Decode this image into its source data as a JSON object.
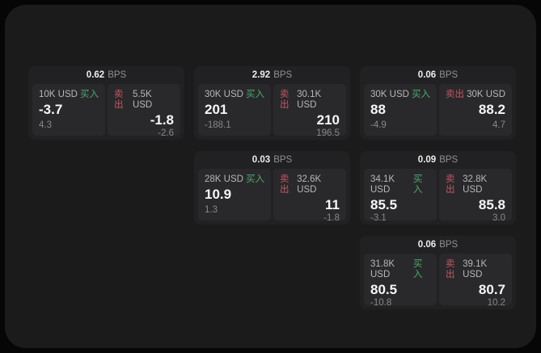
{
  "labels": {
    "bps_unit": "BPS",
    "buy_label": "买入",
    "sell_label": "卖出"
  },
  "colors": {
    "page_background": "#060607",
    "panel_background": "#1b1b1c",
    "card_background": "#212123",
    "subpanel_background": "#29292b",
    "buy_green": "#4cab6c",
    "sell_red": "#c45663",
    "value_white": "#f6f6f7",
    "muted_gray": "#88888b"
  },
  "cards": [
    {
      "bps": "0.62",
      "buy": {
        "amount": "10K USD",
        "price": "-3.7",
        "change": "4.3"
      },
      "sell": {
        "amount": "5.5K USD",
        "price": "-1.8",
        "change": "-2.6"
      }
    },
    {
      "bps": "2.92",
      "buy": {
        "amount": "30K USD",
        "price": "201",
        "change": "-188.1"
      },
      "sell": {
        "amount": "30.1K USD",
        "price": "210",
        "change": "196.5"
      }
    },
    {
      "bps": "0.06",
      "buy": {
        "amount": "30K USD",
        "price": "88",
        "change": "-4.9"
      },
      "sell": {
        "amount": "30K USD",
        "price": "88.2",
        "change": "4.7"
      }
    },
    {
      "bps": "0.03",
      "buy": {
        "amount": "28K USD",
        "price": "10.9",
        "change": "1.3"
      },
      "sell": {
        "amount": "32.6K USD",
        "price": "11",
        "change": "-1.8"
      }
    },
    {
      "bps": "0.09",
      "buy": {
        "amount": "34.1K USD",
        "price": "85.5",
        "change": "-3.1"
      },
      "sell": {
        "amount": "32.8K USD",
        "price": "85.8",
        "change": "3.0"
      }
    },
    {
      "bps": "0.06",
      "buy": {
        "amount": "31.8K USD",
        "price": "80.5",
        "change": "-10.8"
      },
      "sell": {
        "amount": "39.1K USD",
        "price": "80.7",
        "change": "10.2"
      }
    }
  ]
}
